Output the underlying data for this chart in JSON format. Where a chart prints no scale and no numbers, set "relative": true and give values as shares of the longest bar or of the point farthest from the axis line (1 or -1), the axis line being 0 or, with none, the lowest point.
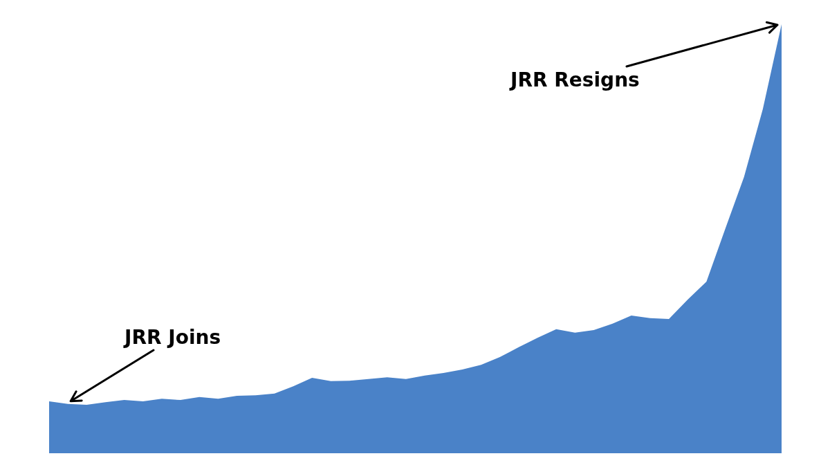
{
  "chart_data": {
    "type": "area",
    "relative": true,
    "categories": [
      null,
      null,
      null,
      null,
      null,
      null,
      null,
      null,
      null,
      null,
      null,
      null,
      null,
      null,
      null,
      null,
      null,
      null,
      null,
      null,
      null,
      null,
      null,
      null,
      null,
      null,
      null,
      null,
      null,
      null,
      null,
      null,
      null,
      null,
      null,
      null,
      null,
      null,
      null,
      null
    ],
    "series": [
      {
        "color": "#4a82c8",
        "values": [
          0.121,
          0.115,
          0.113,
          0.119,
          0.124,
          0.121,
          0.127,
          0.124,
          0.131,
          0.127,
          0.134,
          0.135,
          0.139,
          0.156,
          0.176,
          0.168,
          0.169,
          0.173,
          0.177,
          0.173,
          0.181,
          0.187,
          0.195,
          0.206,
          0.224,
          0.247,
          0.269,
          0.289,
          0.281,
          0.287,
          0.302,
          0.321,
          0.315,
          0.313,
          0.358,
          0.4,
          0.523,
          0.644,
          0.802,
          1
        ]
      }
    ],
    "annotations": [
      "JRR Joins",
      "JRR Resigns"
    ]
  }
}
